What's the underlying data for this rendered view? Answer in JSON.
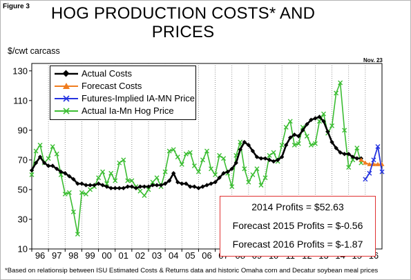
{
  "figure_label": "Figure 3",
  "note": "Nov. 23",
  "footnote": "*Based on relationsip between ISU Estimated Costs & Returns data and historic Omaha corn and Decatur soybean meal prices",
  "profits_box": [
    "2014 Profits = $52.63",
    "Forecast 2015 Profits = $-0.56",
    "Forecast 2016 Profits = $-1.87"
  ],
  "colors": {
    "actual_costs": "#000000",
    "forecast_costs": "#f07c1e",
    "futures_price": "#2433e0",
    "actual_price": "#3bbd32",
    "profits_border": "#e03030"
  },
  "chart_data": {
    "type": "line",
    "title": "HOG PRODUCTION COSTS* AND PRICES",
    "ylabel": "$/cwt carcass",
    "xlabel": "",
    "ylim": [
      10,
      135
    ],
    "xlim": [
      1996.0,
      2017.0
    ],
    "y_ticks": [
      10,
      30,
      50,
      70,
      90,
      110,
      130
    ],
    "x_ticks": [
      "96",
      "97",
      "98",
      "99",
      "00",
      "01",
      "02",
      "03",
      "04",
      "05",
      "06",
      "07",
      "08",
      "09",
      "10",
      "11",
      "12",
      "13",
      "14",
      "15",
      "16"
    ],
    "x_tick_years": [
      1996,
      1997,
      1998,
      1999,
      2000,
      2001,
      2002,
      2003,
      2004,
      2005,
      2006,
      2007,
      2008,
      2009,
      2010,
      2011,
      2012,
      2013,
      2014,
      2015,
      2016
    ],
    "grid": "vertical-dotted",
    "legend_position": "top-left",
    "series": [
      {
        "name": "Actual Costs",
        "color": "#000000",
        "marker": "diamond",
        "x": [
          1996.0,
          1996.25,
          1996.5,
          1996.75,
          1997.0,
          1997.25,
          1997.5,
          1997.75,
          1998.0,
          1998.25,
          1998.5,
          1998.75,
          1999.0,
          1999.25,
          1999.5,
          1999.75,
          2000.0,
          2000.25,
          2000.5,
          2000.75,
          2001.0,
          2001.25,
          2001.5,
          2001.75,
          2002.0,
          2002.25,
          2002.5,
          2002.75,
          2003.0,
          2003.25,
          2003.5,
          2003.75,
          2004.0,
          2004.25,
          2004.5,
          2004.75,
          2005.0,
          2005.25,
          2005.5,
          2005.75,
          2006.0,
          2006.25,
          2006.5,
          2006.75,
          2007.0,
          2007.25,
          2007.5,
          2007.75,
          2008.0,
          2008.25,
          2008.5,
          2008.75,
          2009.0,
          2009.25,
          2009.5,
          2009.75,
          2010.0,
          2010.25,
          2010.5,
          2010.75,
          2011.0,
          2011.25,
          2011.5,
          2011.75,
          2012.0,
          2012.25,
          2012.5,
          2012.75,
          2013.0,
          2013.25,
          2013.5,
          2013.75,
          2014.0,
          2014.25,
          2014.5,
          2014.75,
          2015.0,
          2015.25,
          2015.5,
          2015.75
        ],
        "y": [
          63,
          68,
          72,
          68,
          66,
          66,
          64,
          62,
          61,
          59,
          57,
          54,
          54,
          53,
          53,
          53,
          54,
          53,
          52,
          51,
          51,
          51,
          51,
          52,
          52,
          51,
          52,
          52,
          52,
          53,
          53,
          53,
          54,
          56,
          61,
          55,
          54,
          54,
          52,
          52,
          51,
          52,
          53,
          54,
          55,
          58,
          61,
          62,
          64,
          68,
          77,
          82,
          80,
          76,
          72,
          71,
          71,
          70,
          69,
          70,
          72,
          80,
          85,
          87,
          86,
          90,
          94,
          97,
          98,
          99,
          96,
          89,
          82,
          78,
          75,
          74,
          74,
          72,
          71,
          71
        ]
      },
      {
        "name": "Forecast Costs",
        "color": "#f07c1e",
        "marker": "triangle",
        "x": [
          2015.75,
          2016.0,
          2016.25,
          2016.5,
          2016.75,
          2017.0
        ],
        "y": [
          70,
          68,
          67,
          67,
          67,
          67
        ]
      },
      {
        "name": "Futures-Implied IA-MN Price",
        "color": "#2433e0",
        "marker": "x",
        "x": [
          2016.0,
          2016.25,
          2016.5,
          2016.75,
          2017.0
        ],
        "y": [
          57,
          61,
          70,
          79,
          62
        ]
      },
      {
        "name": "Actual Ia-Mn Hog Price",
        "color": "#3bbd32",
        "marker": "x",
        "x": [
          1996.0,
          1996.25,
          1996.5,
          1996.75,
          1997.0,
          1997.25,
          1997.5,
          1997.75,
          1998.0,
          1998.25,
          1998.5,
          1998.75,
          1999.0,
          1999.25,
          1999.5,
          1999.75,
          2000.0,
          2000.25,
          2000.5,
          2000.75,
          2001.0,
          2001.25,
          2001.5,
          2001.75,
          2002.0,
          2002.25,
          2002.5,
          2002.75,
          2003.0,
          2003.25,
          2003.5,
          2003.75,
          2004.0,
          2004.25,
          2004.5,
          2004.75,
          2005.0,
          2005.25,
          2005.5,
          2005.75,
          2006.0,
          2006.25,
          2006.5,
          2006.75,
          2007.0,
          2007.25,
          2007.5,
          2007.75,
          2008.0,
          2008.25,
          2008.5,
          2008.75,
          2009.0,
          2009.25,
          2009.5,
          2009.75,
          2010.0,
          2010.25,
          2010.5,
          2010.75,
          2011.0,
          2011.25,
          2011.5,
          2011.75,
          2012.0,
          2012.25,
          2012.5,
          2012.75,
          2013.0,
          2013.25,
          2013.5,
          2013.75,
          2014.0,
          2014.25,
          2014.5,
          2014.75,
          2015.0,
          2015.25,
          2015.5,
          2015.75
        ],
        "y": [
          60,
          76,
          80,
          68,
          71,
          79,
          74,
          60,
          47,
          48,
          35,
          20,
          48,
          47,
          50,
          52,
          58,
          62,
          54,
          61,
          56,
          68,
          70,
          56,
          56,
          52,
          49,
          46,
          50,
          55,
          58,
          52,
          62,
          76,
          77,
          72,
          67,
          74,
          75,
          66,
          62,
          70,
          76,
          64,
          60,
          73,
          71,
          61,
          52,
          73,
          82,
          64,
          55,
          60,
          64,
          53,
          58,
          73,
          75,
          69,
          80,
          92,
          96,
          80,
          81,
          92,
          86,
          80,
          81,
          96,
          101,
          88,
          93,
          115,
          122,
          90,
          65,
          70,
          78,
          68
        ]
      }
    ]
  }
}
